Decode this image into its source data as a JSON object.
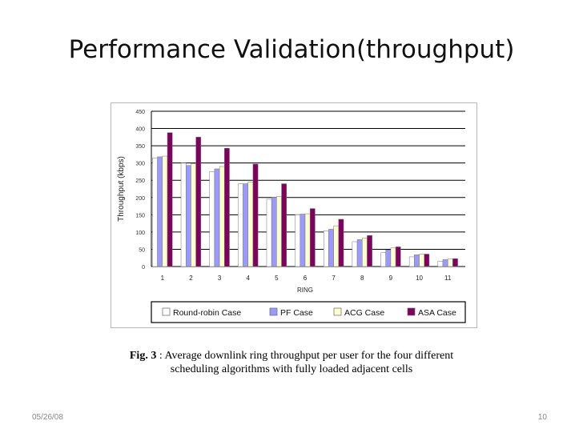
{
  "slide": {
    "title": "Performance Validation(throughput)",
    "date": "05/26/08",
    "page_number": "10"
  },
  "caption": {
    "label": "Fig. 3",
    "separator": " : ",
    "line1": "Average downlink ring throughput per user for the four different",
    "line2": "scheduling algorithms with fully loaded adjacent cells"
  },
  "chart_data": {
    "type": "bar",
    "title": "",
    "xlabel": "RING",
    "ylabel": "Throughput (kbps)",
    "ylim": [
      0,
      450
    ],
    "yticks": [
      0,
      50,
      100,
      150,
      200,
      250,
      300,
      350,
      400,
      450
    ],
    "categories": [
      "1",
      "2",
      "3",
      "4",
      "5",
      "6",
      "7",
      "8",
      "9",
      "10",
      "11"
    ],
    "legend_position": "bottom",
    "grid": true,
    "series": [
      {
        "name": "Round-robin Case",
        "color": "#ffffff",
        "values": [
          315,
          300,
          275,
          240,
          195,
          150,
          103,
          72,
          40,
          28,
          15
        ]
      },
      {
        "name": "PF Case",
        "color": "#9999ff",
        "values": [
          318,
          293,
          283,
          240,
          200,
          152,
          108,
          78,
          48,
          34,
          20
        ]
      },
      {
        "name": "ACG Case",
        "color": "#ffffcc",
        "values": [
          320,
          298,
          290,
          245,
          203,
          153,
          118,
          82,
          54,
          36,
          22
        ]
      },
      {
        "name": "ASA Case",
        "color": "#800060",
        "values": [
          388,
          375,
          343,
          297,
          240,
          168,
          137,
          90,
          57,
          36,
          23
        ]
      }
    ]
  }
}
